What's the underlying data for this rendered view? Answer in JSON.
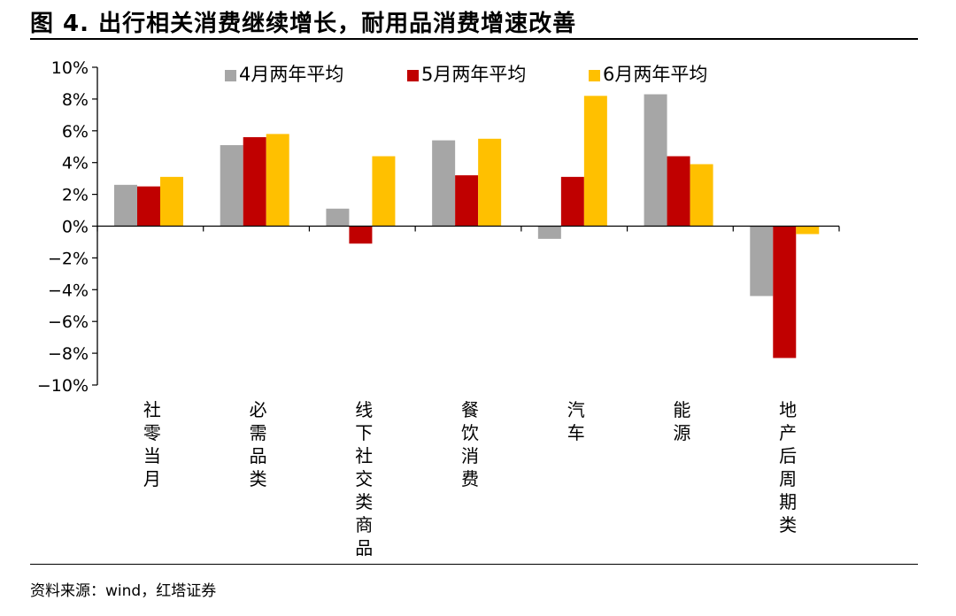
{
  "figure": {
    "title": "图 4. 出行相关消费继续增长，耐用品消费增速改善",
    "source": "资料来源：wind，红塔证券"
  },
  "chart_data": {
    "type": "bar",
    "categories": [
      "社零当月",
      "必需品类",
      "线下社交类商品",
      "餐饮消费",
      "汽车",
      "能源",
      "地产后周期类"
    ],
    "series": [
      {
        "name": "4月两年平均",
        "color": "#A6A6A6",
        "values": [
          2.6,
          5.1,
          1.1,
          5.4,
          -0.8,
          8.3,
          -4.4
        ]
      },
      {
        "name": "5月两年平均",
        "color": "#C00000",
        "values": [
          2.5,
          5.6,
          -1.1,
          3.2,
          3.1,
          4.4,
          -8.3
        ]
      },
      {
        "name": "6月两年平均",
        "color": "#FFC000",
        "values": [
          3.1,
          5.8,
          4.4,
          5.5,
          8.2,
          3.9,
          -0.5
        ]
      }
    ],
    "ylim": [
      -10,
      10
    ],
    "yticks": [
      -10,
      -8,
      -6,
      -4,
      -2,
      0,
      2,
      4,
      6,
      8,
      10
    ],
    "ytick_labels": [
      "−10%",
      "−8%",
      "−6%",
      "−4%",
      "−2%",
      "0%",
      "2%",
      "4%",
      "6%",
      "8%",
      "10%"
    ],
    "xlabel": "",
    "ylabel": "",
    "grid": false,
    "legend_position": "top"
  }
}
